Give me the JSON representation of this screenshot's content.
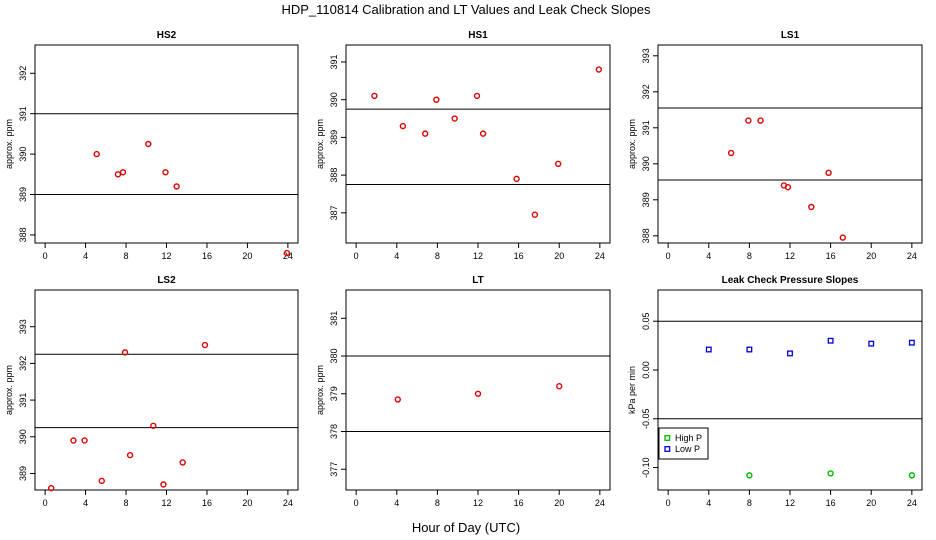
{
  "figure": {
    "title": "HDP_110814  Calibration and LT Values and Leak Check Slopes",
    "xlabel": "Hour of Day (UTC)"
  },
  "chart_data": [
    {
      "id": "hs2",
      "type": "scatter",
      "title": "HS2",
      "ylabel": "approx. ppm",
      "xlim": [
        -1,
        25
      ],
      "ylim": [
        387.8,
        392.7
      ],
      "xticks": [
        0,
        4,
        8,
        12,
        16,
        20,
        24
      ],
      "yticks": [
        388,
        389,
        390,
        391,
        392
      ],
      "hlines": [
        389.0,
        391.0
      ],
      "series": [
        {
          "marker": "circle",
          "color": "#dd0000",
          "x": [
            5.1,
            7.2,
            7.7,
            10.2,
            11.9,
            13.0,
            23.9
          ],
          "y": [
            390.0,
            389.5,
            389.55,
            390.25,
            389.55,
            389.2,
            387.55
          ]
        }
      ]
    },
    {
      "id": "hs1",
      "type": "scatter",
      "title": "HS1",
      "ylabel": "approx. ppm",
      "xlim": [
        -1,
        25
      ],
      "ylim": [
        386.2,
        391.45
      ],
      "xticks": [
        0,
        4,
        8,
        12,
        16,
        20,
        24
      ],
      "yticks": [
        387,
        388,
        389,
        390,
        391
      ],
      "hlines": [
        387.75,
        389.75
      ],
      "series": [
        {
          "marker": "circle",
          "color": "#dd0000",
          "x": [
            1.8,
            4.6,
            6.8,
            7.9,
            9.7,
            11.9,
            12.5,
            15.8,
            17.6,
            19.9,
            23.9
          ],
          "y": [
            390.1,
            389.3,
            389.1,
            390.0,
            389.5,
            390.1,
            389.1,
            387.9,
            386.95,
            388.3,
            390.8
          ]
        }
      ]
    },
    {
      "id": "ls1",
      "type": "scatter",
      "title": "LS1",
      "ylabel": "approx. ppm",
      "xlim": [
        -1,
        25
      ],
      "ylim": [
        387.8,
        393.3
      ],
      "xticks": [
        0,
        4,
        8,
        12,
        16,
        20,
        24
      ],
      "yticks": [
        388,
        389,
        390,
        391,
        392,
        393
      ],
      "hlines": [
        389.55,
        391.55
      ],
      "series": [
        {
          "marker": "circle",
          "color": "#dd0000",
          "x": [
            6.2,
            7.9,
            9.1,
            11.4,
            11.8,
            14.1,
            15.8,
            17.2
          ],
          "y": [
            390.3,
            391.2,
            391.2,
            389.4,
            389.35,
            388.8,
            389.75,
            387.95
          ]
        }
      ]
    },
    {
      "id": "ls2",
      "type": "scatter",
      "title": "LS2",
      "ylabel": "approx. ppm",
      "xlim": [
        -1,
        25
      ],
      "ylim": [
        388.55,
        394.0
      ],
      "xticks": [
        0,
        4,
        8,
        12,
        16,
        20,
        24
      ],
      "yticks": [
        389,
        390,
        391,
        392,
        393
      ],
      "hlines": [
        390.25,
        392.25
      ],
      "series": [
        {
          "marker": "circle",
          "color": "#dd0000",
          "x": [
            0.6,
            2.8,
            3.9,
            5.6,
            7.9,
            8.4,
            10.7,
            11.7,
            13.6,
            15.8
          ],
          "y": [
            388.6,
            389.9,
            389.9,
            388.8,
            392.3,
            389.5,
            390.3,
            388.7,
            389.3,
            392.5
          ]
        }
      ]
    },
    {
      "id": "lt",
      "type": "scatter",
      "title": "LT",
      "ylabel": "approx. ppm",
      "xlim": [
        -1,
        25
      ],
      "ylim": [
        376.45,
        381.75
      ],
      "xticks": [
        0,
        4,
        8,
        12,
        16,
        20,
        24
      ],
      "yticks": [
        377,
        378,
        379,
        380,
        381
      ],
      "hlines": [
        378.0,
        380.0
      ],
      "series": [
        {
          "marker": "circle",
          "color": "#dd0000",
          "x": [
            4.1,
            12.0,
            20.0
          ],
          "y": [
            378.85,
            379.0,
            379.2
          ]
        }
      ]
    },
    {
      "id": "leak",
      "type": "scatter",
      "title": "Leak Check Pressure Slopes",
      "ylabel": "kPa per min",
      "xlim": [
        -1,
        25
      ],
      "ylim": [
        -0.123,
        0.082
      ],
      "xticks": [
        0,
        4,
        8,
        12,
        16,
        20,
        24
      ],
      "yticks": [
        -0.1,
        -0.05,
        0.0,
        0.05
      ],
      "ytick_labels": [
        "-0.10",
        "-0.05",
        "0.00",
        "0.05"
      ],
      "hlines": [
        -0.05,
        0.05
      ],
      "legend_position": "bottom-left",
      "series": [
        {
          "name": "High P",
          "marker": "circle",
          "color": "#00bb00",
          "x": [
            8.0,
            16.0,
            24.0
          ],
          "y": [
            -0.108,
            -0.106,
            -0.108
          ]
        },
        {
          "name": "Low P",
          "marker": "square",
          "color": "#0000dd",
          "x": [
            4.0,
            8.0,
            12.0,
            16.0,
            20.0,
            24.0
          ],
          "y": [
            0.021,
            0.021,
            0.017,
            0.03,
            0.027,
            0.028
          ]
        }
      ]
    }
  ]
}
